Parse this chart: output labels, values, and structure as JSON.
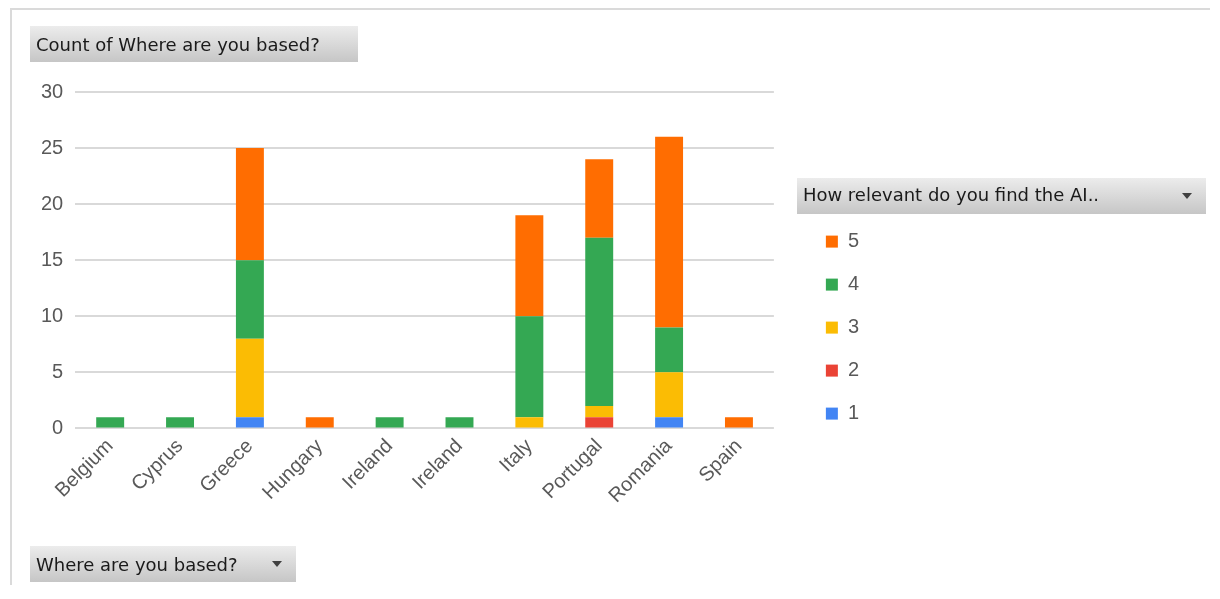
{
  "chart_data": {
    "type": "bar",
    "title": "Count of Where are you based?",
    "xlabel": "Where are you based?",
    "legend_title": "How relevant do you find the AI..",
    "categories": [
      "Belgium",
      "Cyprus",
      "Greece",
      "Hungary",
      "Ireland",
      "Ireland",
      "Italy",
      "Portugal",
      "Romania",
      "Spain"
    ],
    "series": [
      {
        "name": "1",
        "color": "#4285f4",
        "values": [
          null,
          null,
          1,
          null,
          null,
          null,
          null,
          null,
          1,
          null
        ]
      },
      {
        "name": "2",
        "color": "#ea4335",
        "values": [
          null,
          null,
          null,
          null,
          null,
          null,
          null,
          1,
          null,
          null
        ]
      },
      {
        "name": "3",
        "color": "#fbbc04",
        "values": [
          null,
          null,
          7,
          null,
          null,
          null,
          1,
          1,
          4,
          null
        ]
      },
      {
        "name": "4",
        "color": "#34a853",
        "values": [
          1,
          1,
          7,
          null,
          1,
          1,
          9,
          15,
          4,
          null
        ]
      },
      {
        "name": "5",
        "color": "#ff6d01",
        "values": [
          null,
          null,
          10,
          1,
          null,
          null,
          9,
          7,
          17,
          1
        ]
      }
    ],
    "stacked": true,
    "ylim": [
      0,
      30
    ],
    "yticks": [
      0,
      5,
      10,
      15,
      20,
      25,
      30
    ],
    "grid": "y",
    "legend": "right"
  }
}
